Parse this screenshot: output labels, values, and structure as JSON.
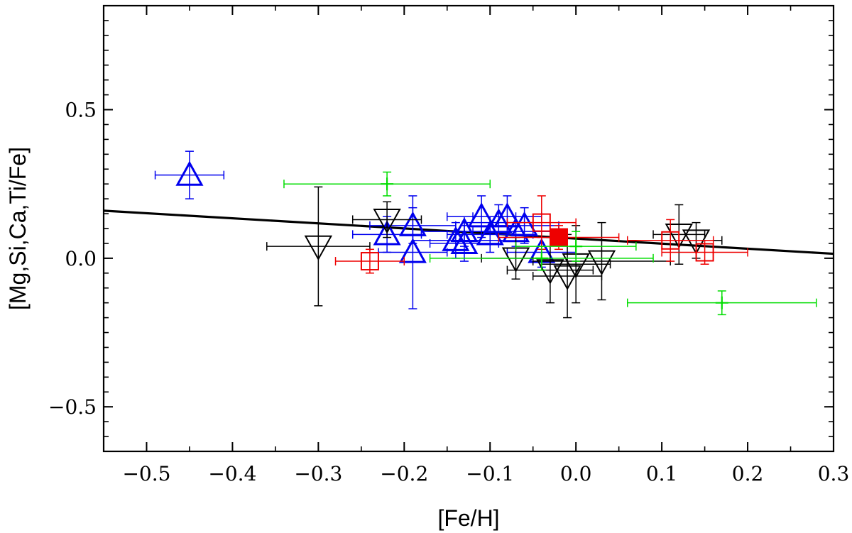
{
  "chart_data": {
    "type": "scatter",
    "xlabel": "[Fe/H]",
    "ylabel": "[Mg,Si,Ca,Ti/Fe]",
    "xlim": [
      -0.55,
      0.3
    ],
    "ylim": [
      -0.65,
      0.85
    ],
    "x_ticks": [
      -0.5,
      -0.4,
      -0.3,
      -0.2,
      -0.1,
      0.0,
      0.1,
      0.2,
      0.3
    ],
    "x_tick_labels": [
      "−0.5",
      "−0.4",
      "−0.3",
      "−0.2",
      "−0.1",
      "0.0",
      "0.1",
      "0.2",
      "0.3"
    ],
    "y_ticks": [
      -0.5,
      0.0,
      0.5
    ],
    "y_tick_labels": [
      "−0.5",
      "0.0",
      "0.5"
    ],
    "grid": false,
    "trend_line": {
      "x": [
        -0.55,
        0.3
      ],
      "y": [
        0.16,
        0.015
      ],
      "color": "#000000"
    },
    "series": [
      {
        "name": "blue-triangles-up",
        "marker": "triangle-up",
        "color": "#0000ee",
        "points": [
          {
            "x": -0.45,
            "y": 0.28,
            "xerr": 0.04,
            "yerr": 0.08
          },
          {
            "x": -0.22,
            "y": 0.08,
            "xerr": 0.04,
            "yerr": 0.06
          },
          {
            "x": -0.19,
            "y": 0.11,
            "xerr": 0.05,
            "yerr": 0.06
          },
          {
            "x": -0.19,
            "y": 0.02,
            "xerr": 0.04,
            "yerr": 0.19
          },
          {
            "x": -0.14,
            "y": 0.06,
            "xerr": 0.05,
            "yerr": 0.06
          },
          {
            "x": -0.13,
            "y": 0.09,
            "xerr": 0.05,
            "yerr": 0.05
          },
          {
            "x": -0.13,
            "y": 0.05,
            "xerr": 0.04,
            "yerr": 0.06
          },
          {
            "x": -0.11,
            "y": 0.14,
            "xerr": 0.04,
            "yerr": 0.07
          },
          {
            "x": -0.1,
            "y": 0.08,
            "xerr": 0.05,
            "yerr": 0.06
          },
          {
            "x": -0.09,
            "y": 0.12,
            "xerr": 0.04,
            "yerr": 0.06
          },
          {
            "x": -0.08,
            "y": 0.14,
            "xerr": 0.04,
            "yerr": 0.07
          },
          {
            "x": -0.07,
            "y": 0.09,
            "xerr": 0.05,
            "yerr": 0.05
          },
          {
            "x": -0.06,
            "y": 0.11,
            "xerr": 0.04,
            "yerr": 0.06
          },
          {
            "x": -0.04,
            "y": 0.02,
            "xerr": 0.04,
            "yerr": 0.05
          }
        ]
      },
      {
        "name": "black-triangles-down",
        "marker": "triangle-down",
        "color": "#000000",
        "points": [
          {
            "x": -0.3,
            "y": 0.04,
            "xerr": 0.06,
            "yerr": 0.2
          },
          {
            "x": -0.22,
            "y": 0.13,
            "xerr": 0.04,
            "yerr": 0.06
          },
          {
            "x": -0.07,
            "y": 0.0,
            "xerr": 0.04,
            "yerr": 0.07
          },
          {
            "x": -0.03,
            "y": -0.04,
            "xerr": 0.05,
            "yerr": 0.11
          },
          {
            "x": -0.01,
            "y": -0.06,
            "xerr": 0.04,
            "yerr": 0.14
          },
          {
            "x": 0.0,
            "y": -0.02,
            "xerr": 0.04,
            "yerr": 0.13
          },
          {
            "x": 0.03,
            "y": -0.01,
            "xerr": 0.08,
            "yerr": 0.13
          },
          {
            "x": 0.12,
            "y": 0.08,
            "xerr": 0.03,
            "yerr": 0.1
          },
          {
            "x": 0.14,
            "y": 0.06,
            "xerr": 0.03,
            "yerr": 0.06
          }
        ]
      },
      {
        "name": "red-squares",
        "marker": "square",
        "color": "#ee0000",
        "points": [
          {
            "x": -0.24,
            "y": -0.01,
            "xerr": 0.04,
            "yerr": 0.04
          },
          {
            "x": -0.04,
            "y": 0.12,
            "xerr": 0.04,
            "yerr": 0.09
          },
          {
            "x": -0.02,
            "y": 0.07,
            "xerr": 0.07,
            "yerr": 0.04,
            "filled": true
          },
          {
            "x": 0.11,
            "y": 0.06,
            "xerr": 0.05,
            "yerr": 0.07
          },
          {
            "x": 0.15,
            "y": 0.02,
            "xerr": 0.05,
            "yerr": 0.04
          }
        ]
      },
      {
        "name": "green-crosses",
        "marker": "cross",
        "color": "#00dd00",
        "points": [
          {
            "x": -0.22,
            "y": 0.25,
            "xerr": 0.12,
            "yerr": 0.04
          },
          {
            "x": 0.0,
            "y": 0.04,
            "xerr": 0.07,
            "yerr": 0.05
          },
          {
            "x": -0.04,
            "y": 0.0,
            "xerr": 0.13,
            "yerr": 0.04
          },
          {
            "x": 0.17,
            "y": -0.15,
            "xerr": 0.11,
            "yerr": 0.04
          }
        ]
      }
    ]
  }
}
